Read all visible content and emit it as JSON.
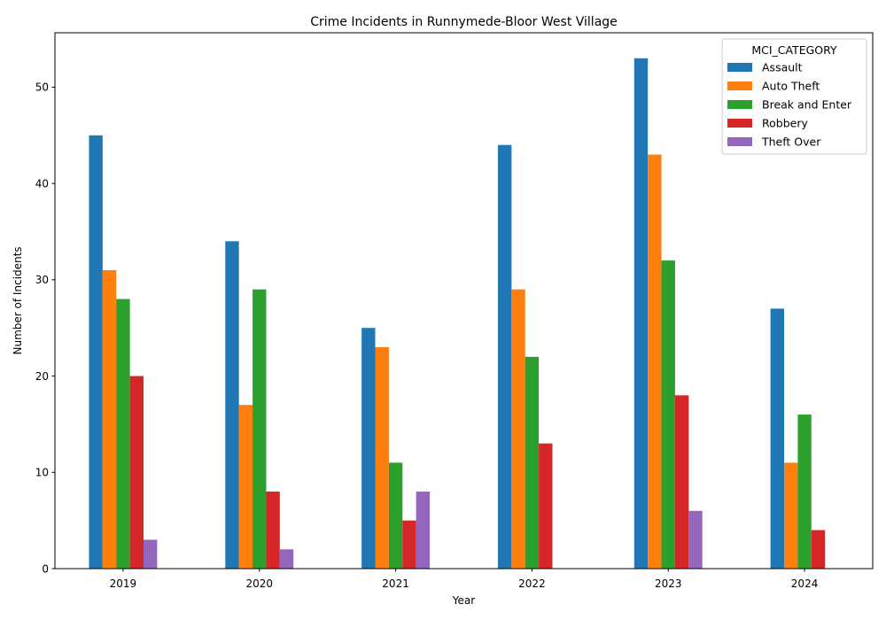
{
  "chart_data": {
    "type": "bar",
    "title": "Crime Incidents in Runnymede-Bloor West Village",
    "xlabel": "Year",
    "ylabel": "Number of Incidents",
    "categories": [
      "2019",
      "2020",
      "2021",
      "2022",
      "2023",
      "2024"
    ],
    "ylim": [
      0,
      55.65
    ],
    "yticks": [
      0,
      10,
      20,
      30,
      40,
      50
    ],
    "legend_title": "MCI_CATEGORY",
    "legend_position": "top-right",
    "grid": false,
    "series": [
      {
        "name": "Assault",
        "color": "#1f77b4",
        "values": [
          45,
          34,
          25,
          44,
          53,
          27
        ]
      },
      {
        "name": "Auto Theft",
        "color": "#ff7f0e",
        "values": [
          31,
          17,
          23,
          29,
          43,
          11
        ]
      },
      {
        "name": "Break and Enter",
        "color": "#2ca02c",
        "values": [
          28,
          29,
          11,
          22,
          32,
          16
        ]
      },
      {
        "name": "Robbery",
        "color": "#d62728",
        "values": [
          20,
          8,
          5,
          13,
          18,
          4
        ]
      },
      {
        "name": "Theft Over",
        "color": "#9467bd",
        "values": [
          3,
          2,
          8,
          null,
          6,
          null
        ]
      }
    ]
  }
}
